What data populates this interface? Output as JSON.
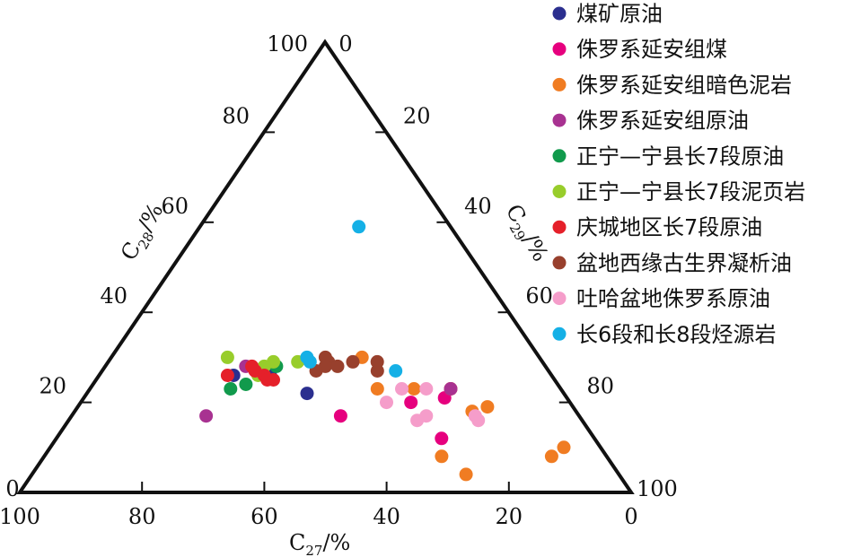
{
  "chart_data": {
    "type": "scatter",
    "subtype": "ternary",
    "axes": {
      "bottom": {
        "component": "C27",
        "label_main": "C",
        "label_sub": "27",
        "label_unit": "/%",
        "ticks": [
          "100",
          "80",
          "60",
          "40",
          "20",
          "0"
        ]
      },
      "left": {
        "component": "C28",
        "label_main": "C",
        "label_sub": "28",
        "label_unit": "/%",
        "ticks": [
          "0",
          "20",
          "40",
          "60",
          "80",
          "100"
        ]
      },
      "right": {
        "component": "C29",
        "label_main": "C",
        "label_sub": "29",
        "label_unit": "/%",
        "ticks": [
          "0",
          "20",
          "40",
          "60",
          "80",
          "100"
        ]
      }
    },
    "ranges": {
      "C27": [
        0,
        100
      ],
      "C28": [
        0,
        100
      ],
      "C29": [
        0,
        100
      ]
    },
    "grid": false,
    "legend_position": "top-right",
    "series": [
      {
        "name": "煤矿原油",
        "color": "#2b2f8f",
        "points": [
          {
            "c28": 26,
            "c29": 22
          },
          {
            "c28": 26,
            "c29": 28
          },
          {
            "c28": 22,
            "c29": 36
          }
        ]
      },
      {
        "name": "侏罗系延安组煤",
        "color": "#e6007e",
        "points": [
          {
            "c28": 17,
            "c29": 44
          },
          {
            "c28": 20,
            "c29": 54
          },
          {
            "c28": 21,
            "c29": 59
          },
          {
            "c28": 12,
            "c29": 63
          },
          {
            "c28": 23,
            "c29": 59
          }
        ]
      },
      {
        "name": "侏罗系延安组暗色泥岩",
        "color": "#f07c22",
        "points": [
          {
            "c28": 30,
            "c29": 41
          },
          {
            "c28": 23,
            "c29": 47
          },
          {
            "c28": 23,
            "c29": 53
          },
          {
            "c28": 8,
            "c29": 65
          },
          {
            "c28": 4,
            "c29": 71
          },
          {
            "c28": 23,
            "c29": 59
          },
          {
            "c28": 18,
            "c29": 65
          },
          {
            "c28": 19,
            "c29": 67
          },
          {
            "c28": 8,
            "c29": 83
          },
          {
            "c28": 10,
            "c29": 84
          }
        ]
      },
      {
        "name": "侏罗系延安组原油",
        "color": "#a83291",
        "points": [
          {
            "c28": 17,
            "c29": 22
          },
          {
            "c28": 28,
            "c29": 23
          },
          {
            "c28": 23,
            "c29": 59
          }
        ]
      },
      {
        "name": "正宁—宁县长7段原油",
        "color": "#119a4c",
        "points": [
          {
            "c28": 23,
            "c29": 23
          },
          {
            "c28": 24,
            "c29": 25
          },
          {
            "c28": 26,
            "c29": 27
          },
          {
            "c28": 28,
            "c29": 28
          }
        ]
      },
      {
        "name": "正宁—宁县长7段泥页岩",
        "color": "#98cd2b",
        "points": [
          {
            "c28": 30,
            "c29": 19
          },
          {
            "c28": 29,
            "c29": 31
          },
          {
            "c28": 26,
            "c29": 26
          },
          {
            "c28": 29,
            "c29": 27
          },
          {
            "c28": 28,
            "c29": 26
          }
        ]
      },
      {
        "name": "庆城地区长7段原油",
        "color": "#e5202a",
        "points": [
          {
            "c28": 26,
            "c29": 21
          },
          {
            "c28": 27,
            "c29": 25
          },
          {
            "c28": 28,
            "c29": 24
          },
          {
            "c28": 26,
            "c29": 27
          },
          {
            "c28": 25,
            "c29": 28
          },
          {
            "c28": 25,
            "c29": 29
          }
        ]
      },
      {
        "name": "盆地西缘古生界凝析油",
        "color": "#98402d",
        "points": [
          {
            "c28": 30,
            "c29": 35
          },
          {
            "c28": 29,
            "c29": 36
          },
          {
            "c28": 28,
            "c29": 36
          },
          {
            "c28": 28,
            "c29": 38
          },
          {
            "c28": 29,
            "c29": 40
          },
          {
            "c28": 27,
            "c29": 45
          },
          {
            "c28": 29,
            "c29": 44
          },
          {
            "c28": 27,
            "c29": 35
          }
        ]
      },
      {
        "name": "吐哈盆地侏罗系原油",
        "color": "#f59dca",
        "points": [
          {
            "c28": 20,
            "c29": 50
          },
          {
            "c28": 23,
            "c29": 51
          },
          {
            "c28": 23,
            "c29": 55
          },
          {
            "c28": 16,
            "c29": 57
          },
          {
            "c28": 17,
            "c29": 58
          },
          {
            "c28": 17,
            "c29": 66
          },
          {
            "c28": 16,
            "c29": 67
          }
        ]
      },
      {
        "name": "长6段和长8段烃源岩",
        "color": "#15b0e6",
        "points": [
          {
            "c28": 59,
            "c29": 26
          },
          {
            "c28": 30,
            "c29": 32
          },
          {
            "c28": 29,
            "c29": 33
          },
          {
            "c28": 27,
            "c29": 48
          }
        ]
      }
    ]
  }
}
